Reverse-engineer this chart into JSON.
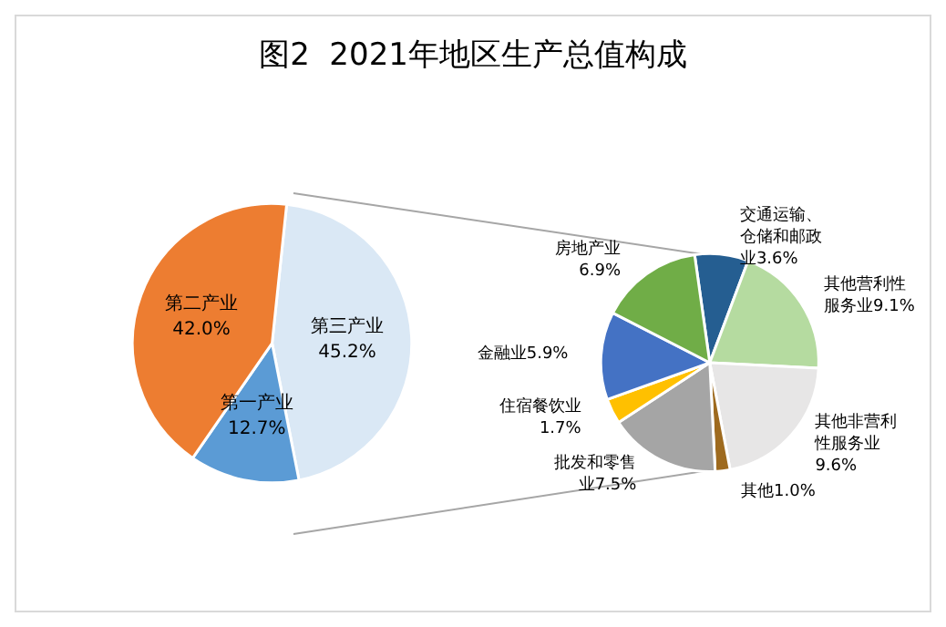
{
  "chart_data": [
    {
      "type": "pie",
      "title": "图2  2021年地区生产总值构成",
      "categories": [
        "第三产业",
        "第一产业",
        "第二产业"
      ],
      "values": [
        45.2,
        12.7,
        42.0
      ],
      "value_labels": [
        "45.2%",
        "12.7%",
        "42.0%"
      ],
      "colors": [
        "#dae8f5",
        "#5b9bd5",
        "#ed7d31"
      ]
    },
    {
      "type": "pie",
      "categories": [
        "交通运输、仓储和邮政业",
        "其他营利性服务业",
        "其他非营利性服务业",
        "其他",
        "批发和零售业",
        "住宿餐饮业",
        "金融业",
        "房地产业"
      ],
      "values": [
        3.6,
        9.1,
        9.6,
        1.0,
        7.5,
        1.7,
        5.9,
        6.9
      ],
      "value_labels": [
        "3.6%",
        "9.1%",
        "9.6%",
        "1.0%",
        "7.5%",
        "1.7%",
        "5.9%",
        "6.9%"
      ],
      "colors": [
        "#255e91",
        "#b5dba0",
        "#e7e6e6",
        "#9e6a1e",
        "#a5a5a5",
        "#ffc000",
        "#4472c4",
        "#70ad47"
      ]
    }
  ]
}
